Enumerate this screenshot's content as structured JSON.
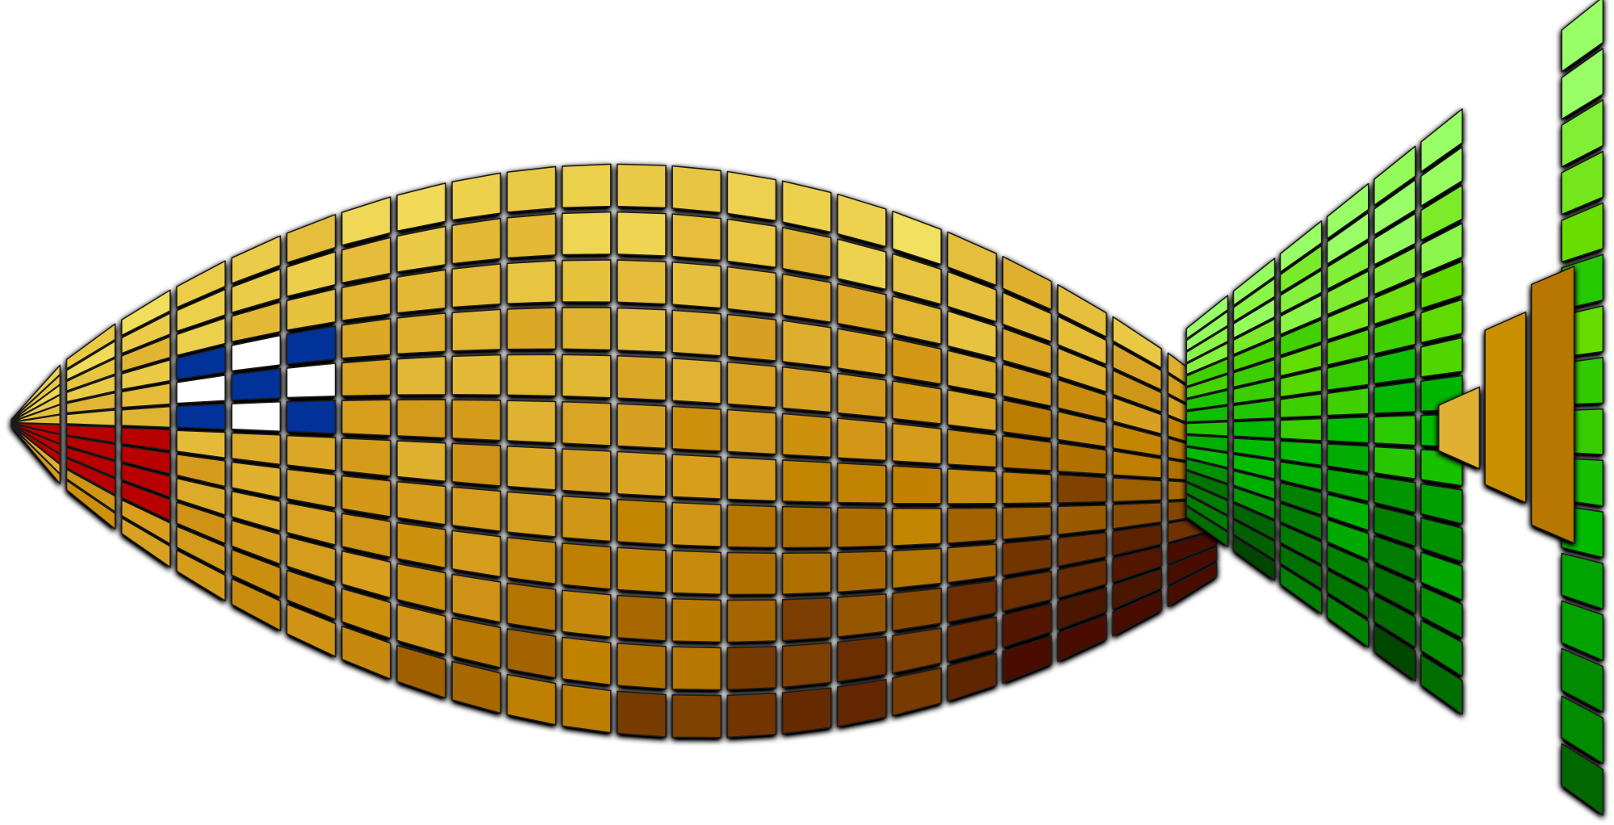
{
  "image": {
    "subject": "mosaic-fish",
    "colors": {
      "background": "#ffffff",
      "body_light": "#f8f070",
      "body_mid": "#e8c440",
      "body_gold": "#d8a020",
      "body_orange": "#c08000",
      "body_brown": "#7a3c00",
      "body_dark": "#4a1000",
      "eye_blue": "#003399",
      "eye_white": "#ffffff",
      "mouth_red": "#b80000",
      "tail_light": "#99ff66",
      "tail_lime": "#66dd00",
      "tail_green": "#00bb00",
      "tail_mid": "#008800",
      "tail_dark": "#004400",
      "tail_stripe_1": "#e0b030",
      "tail_stripe_2": "#c89000",
      "tail_stripe_3": "#b87800",
      "tile_outline": "#1a1a1a"
    }
  }
}
